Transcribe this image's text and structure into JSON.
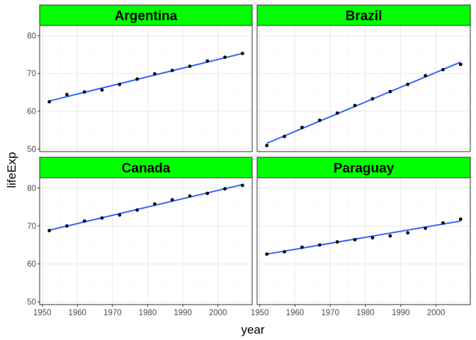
{
  "chart_data": {
    "type": "scatter",
    "facet_variable": "country",
    "xlabel": "year",
    "ylabel": "lifeExp",
    "xlim": [
      1949.25,
      2009.75
    ],
    "x_ticks": [
      1950,
      1960,
      1970,
      1980,
      1990,
      2000
    ],
    "x_tick_labels": [
      "1950",
      "1960",
      "1970",
      "1980",
      "1990",
      "2000"
    ],
    "ylim": [
      49.3,
      82.7
    ],
    "y_ticks": [
      50,
      60,
      70,
      80
    ],
    "y_tick_labels": [
      "50",
      "60",
      "70",
      "80"
    ],
    "grid": true,
    "smooth": "linear fit",
    "colors": {
      "strip_fill": "#00ff00",
      "point": "#000000",
      "fit_line": "#3366ff",
      "major_grid": "#ebebeb",
      "minor_grid": "#f5f5f5",
      "panel_border": "#333333"
    },
    "panels": [
      {
        "title": "Argentina",
        "x": [
          1952,
          1957,
          1962,
          1967,
          1972,
          1977,
          1982,
          1987,
          1992,
          1997,
          2002,
          2007
        ],
        "y": [
          62.5,
          64.4,
          65.1,
          65.6,
          67.1,
          68.5,
          69.9,
          70.8,
          71.9,
          73.3,
          74.3,
          75.3
        ],
        "fit": [
          62.7,
          75.3
        ]
      },
      {
        "title": "Brazil",
        "x": [
          1952,
          1957,
          1962,
          1967,
          1972,
          1977,
          1982,
          1987,
          1992,
          1997,
          2002,
          2007
        ],
        "y": [
          50.9,
          53.3,
          55.7,
          57.6,
          59.5,
          61.5,
          63.3,
          65.2,
          67.1,
          69.4,
          71.0,
          72.4
        ],
        "fit": [
          51.5,
          73.0
        ]
      },
      {
        "title": "Canada",
        "x": [
          1952,
          1957,
          1962,
          1967,
          1972,
          1977,
          1982,
          1987,
          1992,
          1997,
          2002,
          2007
        ],
        "y": [
          68.8,
          70.0,
          71.3,
          72.1,
          72.9,
          74.2,
          75.8,
          76.9,
          77.9,
          78.6,
          79.8,
          80.7
        ],
        "fit": [
          68.9,
          80.9
        ]
      },
      {
        "title": "Paraguay",
        "x": [
          1952,
          1957,
          1962,
          1967,
          1972,
          1977,
          1982,
          1987,
          1992,
          1997,
          2002,
          2007
        ],
        "y": [
          62.6,
          63.2,
          64.4,
          65.0,
          65.8,
          66.4,
          66.9,
          67.4,
          68.2,
          69.4,
          70.8,
          71.8
        ],
        "fit": [
          62.6,
          71.3
        ]
      }
    ]
  }
}
